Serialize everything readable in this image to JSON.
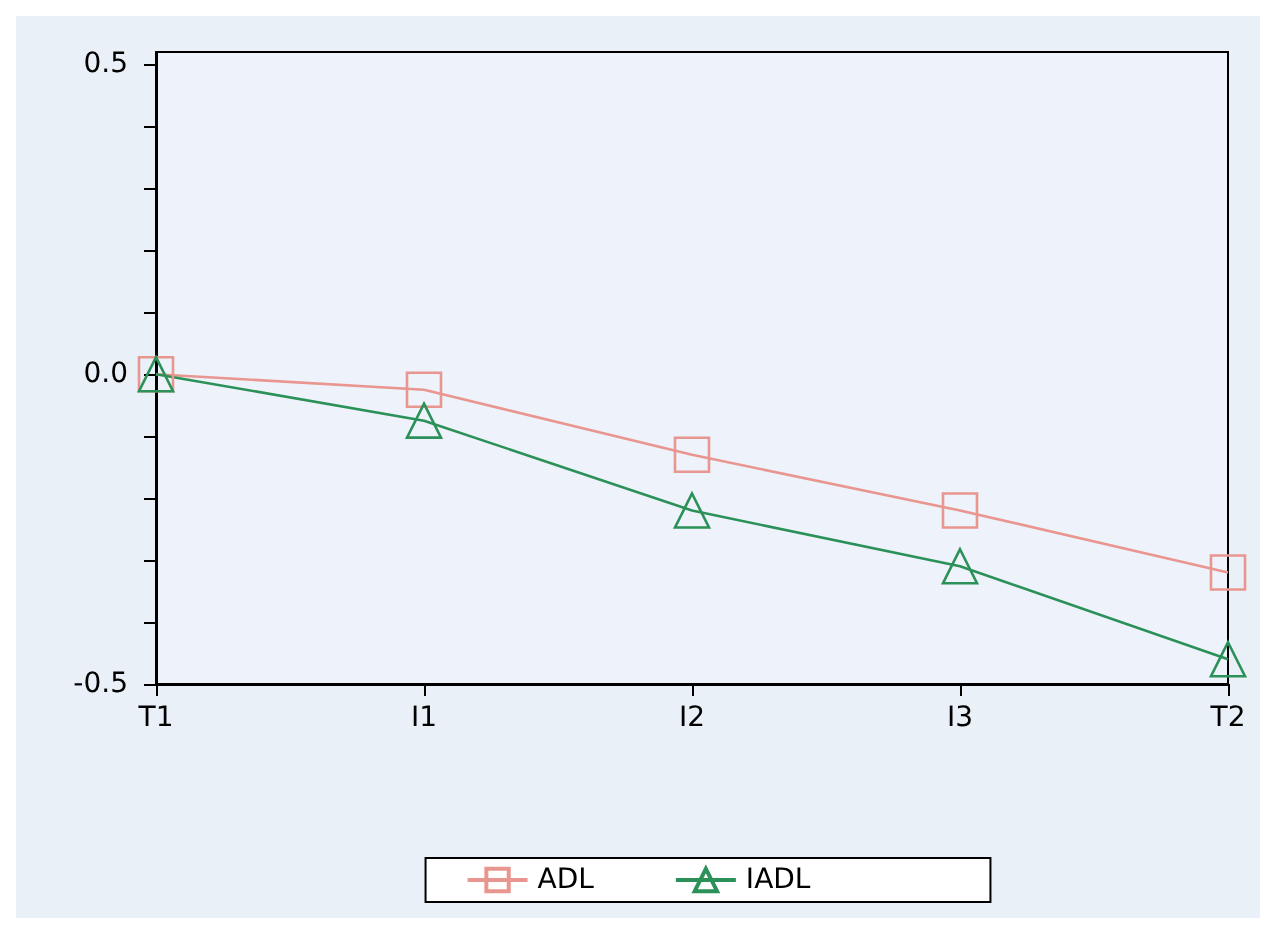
{
  "chart_data": {
    "type": "line",
    "categories": [
      "T1",
      "I1",
      "I2",
      "I3",
      "T2"
    ],
    "series": [
      {
        "name": "ADL",
        "color": "#e8968f",
        "marker": "square",
        "values": [
          0,
          -0.025,
          -0.13,
          -0.22,
          -0.32
        ]
      },
      {
        "name": "IADL",
        "color": "#2b9159",
        "marker": "triangle",
        "values": [
          0,
          -0.075,
          -0.22,
          -0.31,
          -0.46
        ]
      }
    ],
    "ylim": [
      -0.5,
      0.52
    ],
    "yticks": [
      -0.5,
      {
        "value": -0.4,
        "label": null
      },
      {
        "value": -0.3,
        "label": null
      },
      {
        "value": -0.2,
        "label": null
      },
      {
        "value": -0.1,
        "label": null
      },
      {
        "value": 0,
        "label": "0.0"
      },
      {
        "value": 0.1,
        "label": null
      },
      {
        "value": 0.2,
        "label": null
      },
      {
        "value": 0.3,
        "label": null
      },
      {
        "value": 0.4,
        "label": null
      },
      0.5
    ],
    "grid": false,
    "legend": "bottom",
    "line_style": "solid"
  }
}
